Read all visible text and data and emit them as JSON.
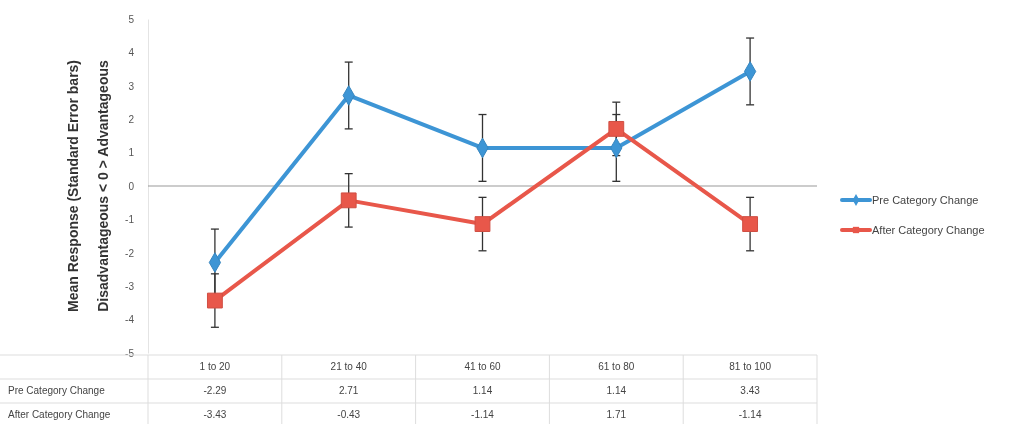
{
  "chart_data": {
    "type": "line",
    "ylabel": "Mean Response (Standard Error bars)\nDisadvantageous < 0 > Advantageous",
    "categories": [
      "1 to 20",
      "21 to 40",
      "41 to 60",
      "61 to 80",
      "81 to 100"
    ],
    "series": [
      {
        "name": "Pre Category Change",
        "color": "#3d95d5",
        "marker": "diamond",
        "values": [
          -2.29,
          2.71,
          1.14,
          1.14,
          3.43
        ],
        "errors": [
          1.0,
          1.0,
          1.0,
          1.0,
          1.0
        ]
      },
      {
        "name": "After Category Change",
        "color": "#e8574a",
        "marker": "square",
        "values": [
          -3.43,
          -0.43,
          -1.14,
          1.71,
          -1.14
        ],
        "errors": [
          0.8,
          0.8,
          0.8,
          0.8,
          0.8
        ]
      }
    ],
    "ylim": [
      -5,
      5
    ],
    "yticks": [
      -5,
      -4,
      -3,
      -2,
      -1,
      0,
      1,
      2,
      3,
      4,
      5
    ],
    "ref_lines": [
      {
        "axis": "y",
        "value": 0
      }
    ],
    "grid": false,
    "legend": "right",
    "data_labels": true,
    "line_style": "solid"
  }
}
